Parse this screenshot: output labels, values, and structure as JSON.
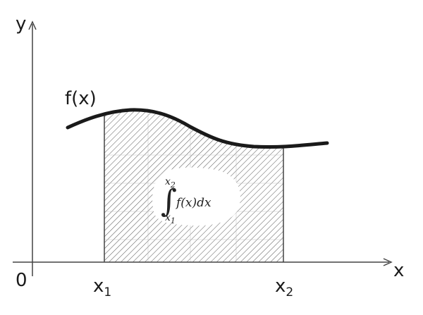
{
  "axes": {
    "x_label": "x",
    "y_label": "y",
    "origin_label": "0"
  },
  "curve": {
    "label": "f(x)"
  },
  "ticks": {
    "x1": {
      "base": "x",
      "sub": "1"
    },
    "x2": {
      "base": "x",
      "sub": "2"
    }
  },
  "integral": {
    "upper": "x",
    "upper_sub": "2",
    "lower": "x",
    "lower_sub": "1",
    "integrand": "f(x)dx"
  }
}
